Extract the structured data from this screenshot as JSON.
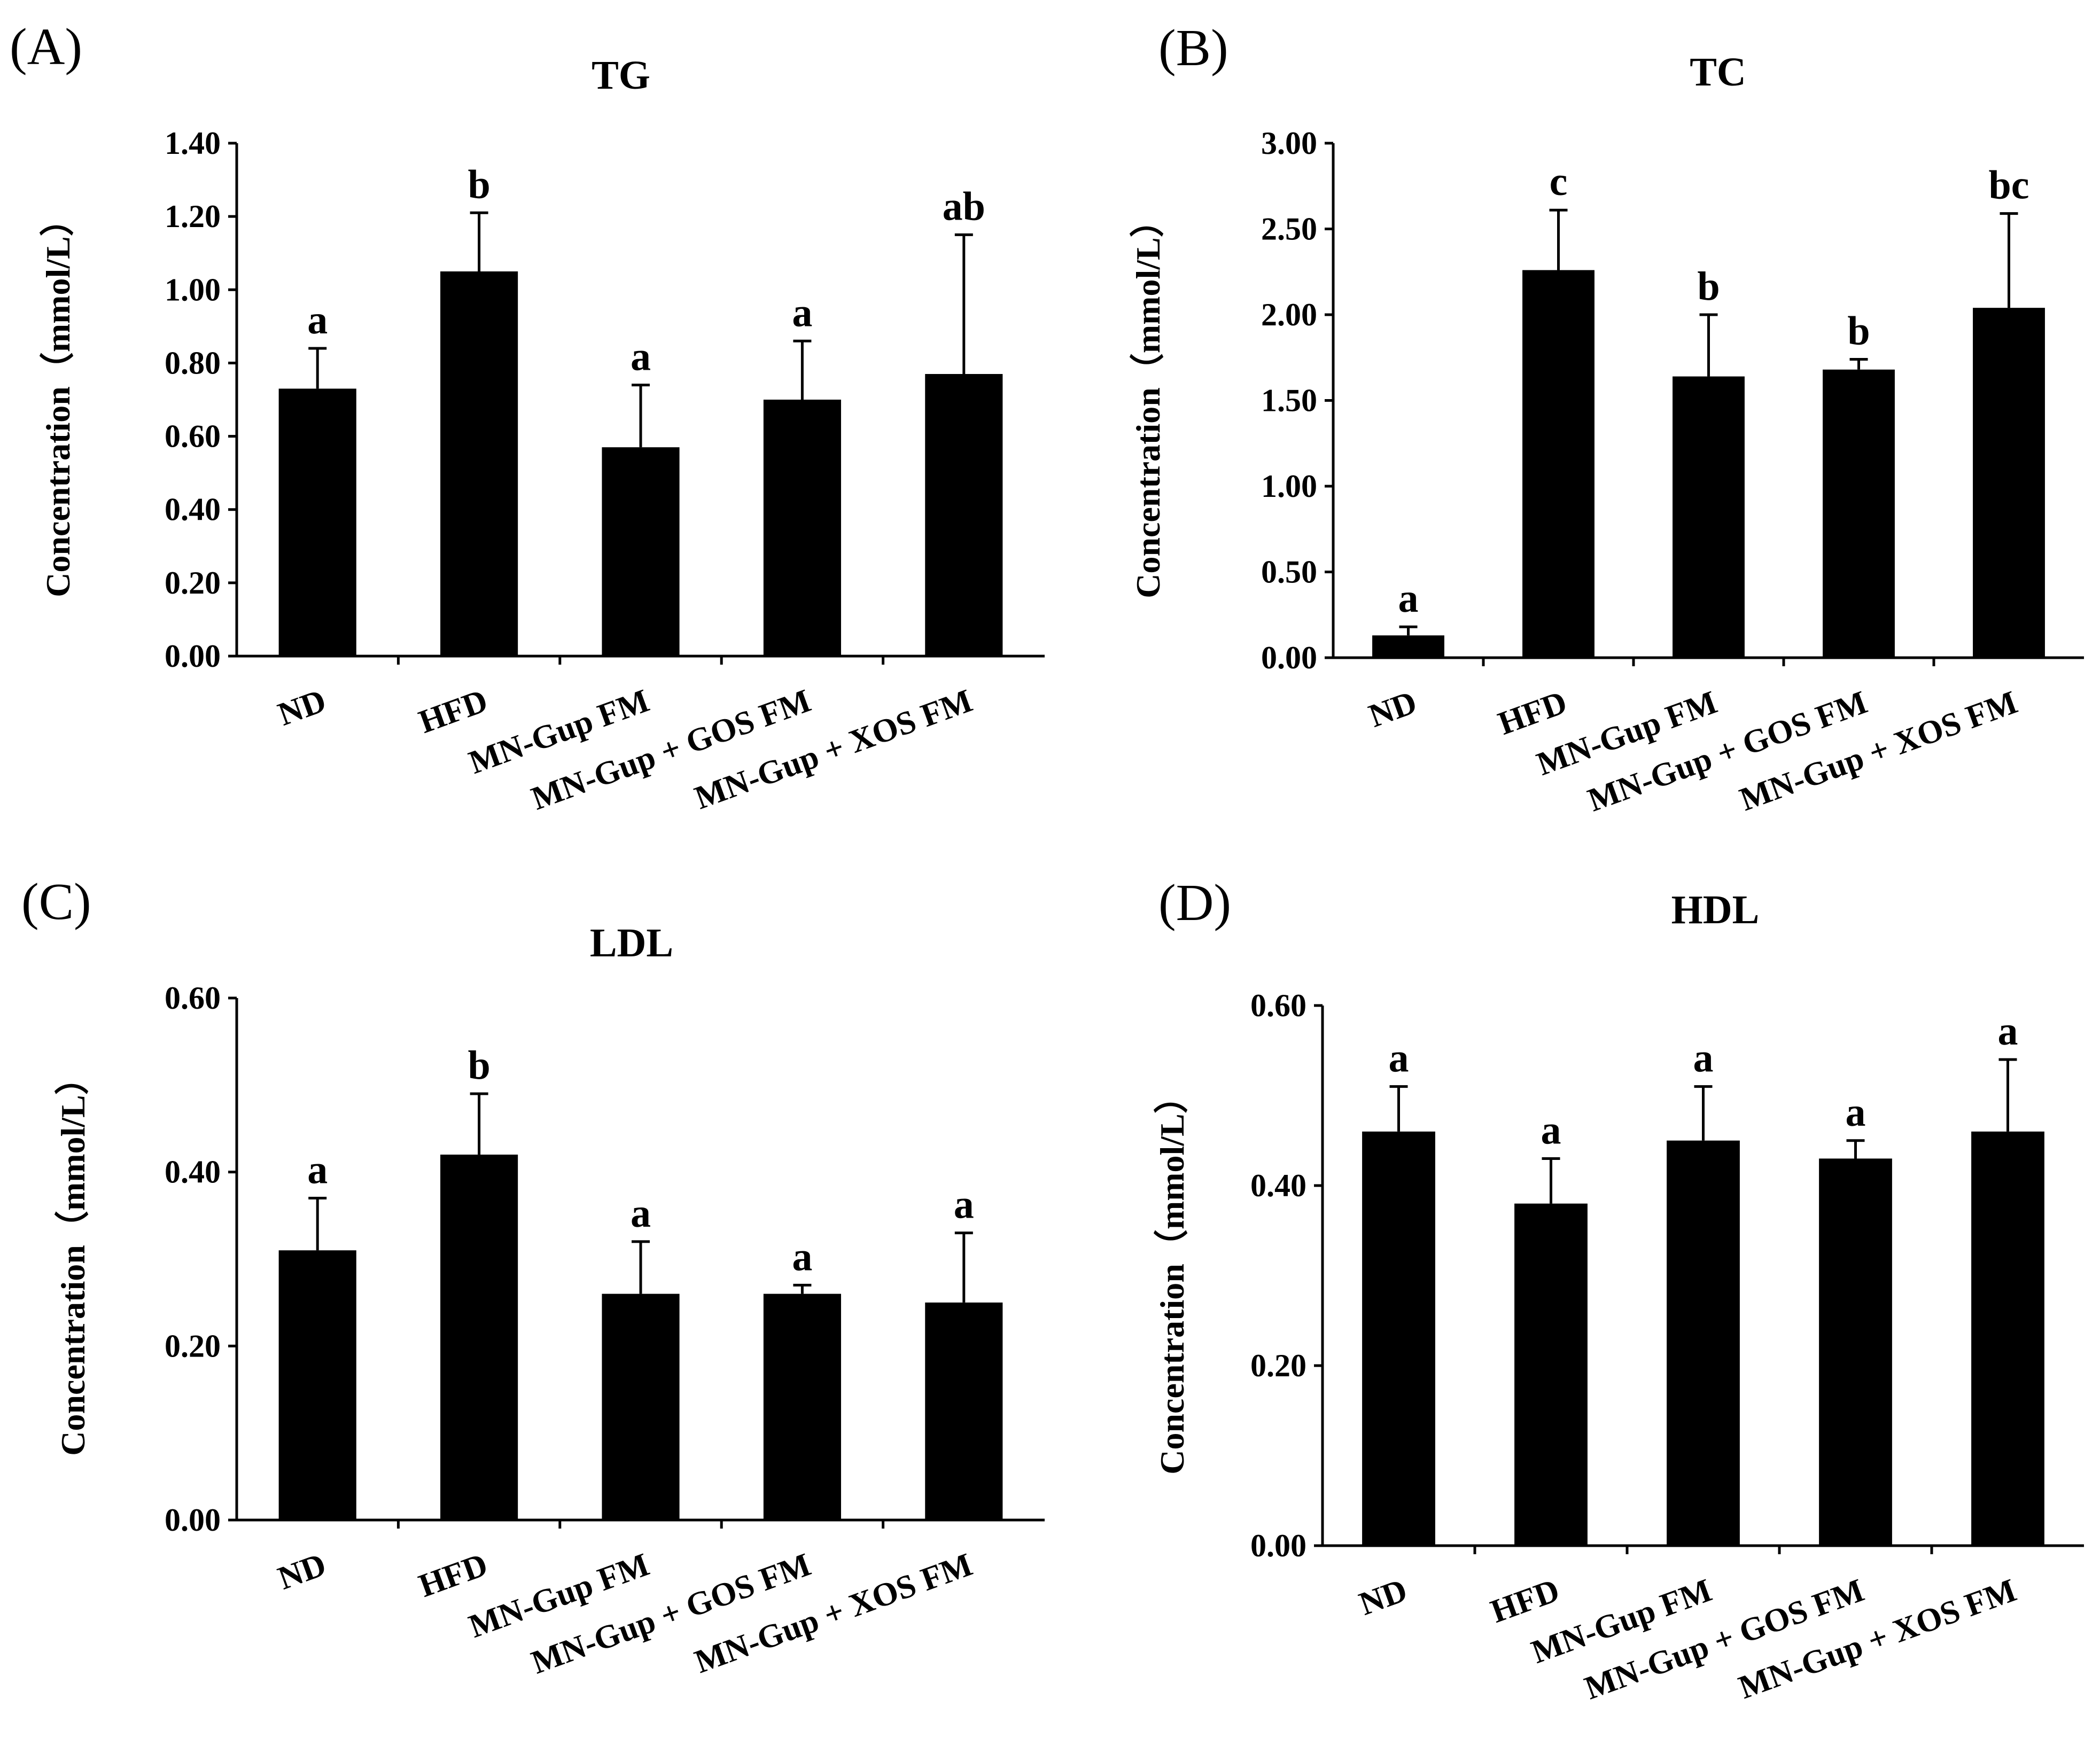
{
  "chart_data": [
    {
      "panel": "(A)",
      "type": "bar",
      "title": "TG",
      "ylabel": "Concentration（mmol/L）",
      "xlabel": "",
      "categories": [
        "ND",
        "HFD",
        "MN-Gup FM",
        "MN-Gup + GOS FM",
        "MN-Gup + XOS FM"
      ],
      "values": [
        0.73,
        1.05,
        0.57,
        0.7,
        0.77
      ],
      "errors": [
        0.11,
        0.16,
        0.17,
        0.16,
        0.38
      ],
      "significance": [
        "a",
        "b",
        "a",
        "a",
        "ab"
      ],
      "ylim": [
        0,
        1.4
      ],
      "yticks": [
        "0.00",
        "0.20",
        "0.40",
        "0.60",
        "0.80",
        "1.00",
        "1.20",
        "1.40"
      ],
      "bar_color": "#000000"
    },
    {
      "panel": "(B)",
      "type": "bar",
      "title": "TC",
      "ylabel": "Concentration（mmol/L）",
      "xlabel": "",
      "categories": [
        "ND",
        "HFD",
        "MN-Gup FM",
        "MN-Gup + GOS FM",
        "MN-Gup + XOS FM"
      ],
      "values": [
        0.13,
        2.26,
        1.64,
        1.68,
        2.04
      ],
      "errors": [
        0.05,
        0.35,
        0.36,
        0.06,
        0.55
      ],
      "significance": [
        "a",
        "c",
        "b",
        "b",
        "bc"
      ],
      "ylim": [
        0,
        3.0
      ],
      "yticks": [
        "0.00",
        "0.50",
        "1.00",
        "1.50",
        "2.00",
        "2.50",
        "3.00"
      ],
      "bar_color": "#000000"
    },
    {
      "panel": "(C)",
      "type": "bar",
      "title": "LDL",
      "ylabel": "Concentration（mmol/L）",
      "xlabel": "",
      "categories": [
        "ND",
        "HFD",
        "MN-Gup FM",
        "MN-Gup + GOS FM",
        "MN-Gup + XOS FM"
      ],
      "values": [
        0.31,
        0.42,
        0.26,
        0.26,
        0.25
      ],
      "errors": [
        0.06,
        0.07,
        0.06,
        0.01,
        0.08
      ],
      "significance": [
        "a",
        "b",
        "a",
        "a",
        "a"
      ],
      "ylim": [
        0,
        0.6
      ],
      "yticks": [
        "0.00",
        "0.20",
        "0.40",
        "0.60"
      ],
      "bar_color": "#000000"
    },
    {
      "panel": "(D)",
      "type": "bar",
      "title": "HDL",
      "ylabel": "Concentration（mmol/L）",
      "xlabel": "",
      "categories": [
        "ND",
        "HFD",
        "MN-Gup FM",
        "MN-Gup + GOS FM",
        "MN-Gup + XOS FM"
      ],
      "values": [
        0.46,
        0.38,
        0.45,
        0.43,
        0.46
      ],
      "errors": [
        0.05,
        0.05,
        0.06,
        0.02,
        0.08
      ],
      "significance": [
        "a",
        "a",
        "a",
        "a",
        "a"
      ],
      "ylim": [
        0,
        0.6
      ],
      "yticks": [
        "0.00",
        "0.20",
        "0.40",
        "0.60"
      ],
      "bar_color": "#000000"
    }
  ]
}
